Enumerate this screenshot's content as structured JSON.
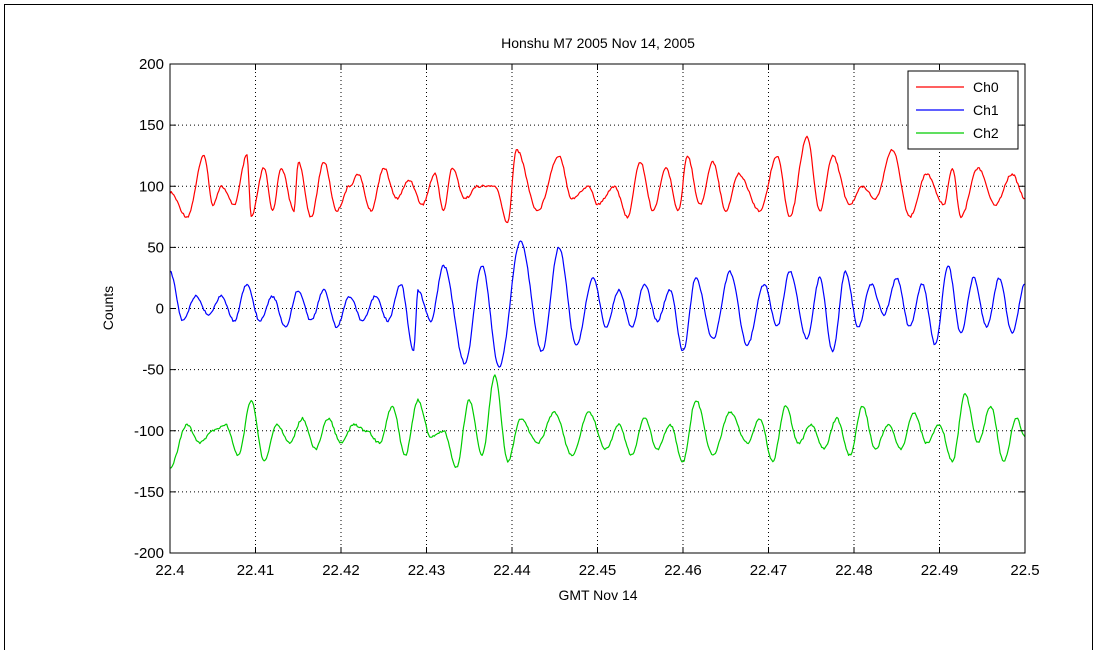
{
  "chart_data": {
    "type": "line",
    "title": "Honshu M7 2005 Nov 14, 2005",
    "xlabel": "GMT Nov 14",
    "ylabel": "Counts",
    "xlim": [
      22.4,
      22.5
    ],
    "ylim": [
      -200,
      200
    ],
    "x_ticks": [
      "22.4",
      "22.41",
      "22.42",
      "22.43",
      "22.44",
      "22.45",
      "22.46",
      "22.47",
      "22.48",
      "22.49",
      "22.5"
    ],
    "y_ticks": [
      "200",
      "150",
      "100",
      "50",
      "0",
      "-50",
      "-100",
      "-150",
      "-200"
    ],
    "grid": true,
    "legend_position": "top-right",
    "series": [
      {
        "name": "Ch0",
        "color": "#ff0000",
        "x": [
          22.4,
          22.402,
          22.404,
          22.405,
          22.406,
          22.4075,
          22.409,
          22.4095,
          22.411,
          22.412,
          22.413,
          22.4145,
          22.415,
          22.4165,
          22.418,
          22.4195,
          22.421,
          22.422,
          22.4235,
          22.425,
          22.4265,
          22.428,
          22.4295,
          22.431,
          22.432,
          22.433,
          22.4345,
          22.436,
          22.438,
          22.4395,
          22.4405,
          22.443,
          22.4455,
          22.447,
          22.449,
          22.45,
          22.452,
          22.4535,
          22.455,
          22.4565,
          22.458,
          22.4595,
          22.4605,
          22.462,
          22.4635,
          22.465,
          22.4665,
          22.469,
          22.471,
          22.4725,
          22.4745,
          22.476,
          22.4775,
          22.4795,
          22.481,
          22.4825,
          22.4845,
          22.4865,
          22.4885,
          22.4905,
          22.4915,
          22.4925,
          22.4945,
          22.4965,
          22.4985,
          22.5
        ],
        "values": [
          95,
          75,
          125,
          85,
          100,
          85,
          125,
          75,
          115,
          80,
          115,
          80,
          120,
          75,
          120,
          80,
          100,
          110,
          80,
          115,
          90,
          105,
          85,
          110,
          80,
          115,
          90,
          100,
          100,
          70,
          130,
          80,
          125,
          90,
          100,
          85,
          100,
          75,
          120,
          80,
          115,
          80,
          125,
          85,
          120,
          80,
          110,
          80,
          125,
          75,
          140,
          80,
          125,
          85,
          100,
          90,
          130,
          75,
          110,
          85,
          115,
          75,
          115,
          85,
          110,
          90
        ]
      },
      {
        "name": "Ch1",
        "color": "#0000ff",
        "x": [
          22.4,
          22.4015,
          22.403,
          22.4045,
          22.406,
          22.4075,
          22.409,
          22.4105,
          22.412,
          22.4135,
          22.415,
          22.4165,
          22.418,
          22.4195,
          22.421,
          22.4225,
          22.424,
          22.4255,
          22.427,
          22.4285,
          22.429,
          22.4305,
          22.432,
          22.4345,
          22.4365,
          22.4385,
          22.441,
          22.4435,
          22.4455,
          22.4475,
          22.4495,
          22.451,
          22.4525,
          22.454,
          22.4555,
          22.457,
          22.4585,
          22.46,
          22.4615,
          22.4635,
          22.4655,
          22.4675,
          22.4695,
          22.471,
          22.4725,
          22.4745,
          22.476,
          22.4775,
          22.479,
          22.4805,
          22.482,
          22.4835,
          22.485,
          22.4865,
          22.488,
          22.4895,
          22.491,
          22.4925,
          22.494,
          22.4955,
          22.497,
          22.4985,
          22.5
        ],
        "values": [
          30,
          -10,
          10,
          -5,
          10,
          -10,
          20,
          -10,
          10,
          -15,
          15,
          -10,
          15,
          -15,
          10,
          -10,
          10,
          -10,
          20,
          -35,
          15,
          -10,
          35,
          -45,
          35,
          -48,
          55,
          -35,
          50,
          -30,
          25,
          -15,
          15,
          -15,
          20,
          -10,
          15,
          -35,
          25,
          -25,
          30,
          -30,
          20,
          -15,
          30,
          -25,
          25,
          -35,
          30,
          -15,
          20,
          -5,
          25,
          -15,
          20,
          -30,
          35,
          -20,
          25,
          -15,
          25,
          -20,
          20
        ]
      },
      {
        "name": "Ch2",
        "color": "#00cc00",
        "x": [
          22.4,
          22.402,
          22.4035,
          22.405,
          22.4065,
          22.408,
          22.4095,
          22.411,
          22.4125,
          22.414,
          22.4155,
          22.417,
          22.4185,
          22.42,
          22.4215,
          22.423,
          22.4245,
          22.426,
          22.4275,
          22.429,
          22.4305,
          22.432,
          22.4335,
          22.435,
          22.4365,
          22.438,
          22.4395,
          22.441,
          22.443,
          22.445,
          22.447,
          22.449,
          22.451,
          22.4525,
          22.454,
          22.4555,
          22.457,
          22.4585,
          22.46,
          22.4615,
          22.4635,
          22.4655,
          22.4675,
          22.469,
          22.4705,
          22.472,
          22.4735,
          22.475,
          22.4765,
          22.478,
          22.4795,
          22.481,
          22.4825,
          22.484,
          22.4855,
          22.487,
          22.4885,
          22.49,
          22.4915,
          22.493,
          22.4945,
          22.496,
          22.4975,
          22.499,
          22.5
        ],
        "values": [
          -130,
          -95,
          -110,
          -100,
          -95,
          -120,
          -75,
          -125,
          -95,
          -110,
          -90,
          -115,
          -90,
          -110,
          -95,
          -100,
          -110,
          -80,
          -120,
          -75,
          -105,
          -100,
          -130,
          -75,
          -120,
          -55,
          -125,
          -90,
          -110,
          -85,
          -120,
          -85,
          -115,
          -95,
          -120,
          -90,
          -115,
          -95,
          -125,
          -75,
          -120,
          -85,
          -110,
          -90,
          -125,
          -80,
          -110,
          -95,
          -115,
          -90,
          -120,
          -80,
          -115,
          -95,
          -115,
          -85,
          -110,
          -95,
          -125,
          -70,
          -110,
          -80,
          -125,
          -90,
          -105
        ]
      }
    ]
  }
}
